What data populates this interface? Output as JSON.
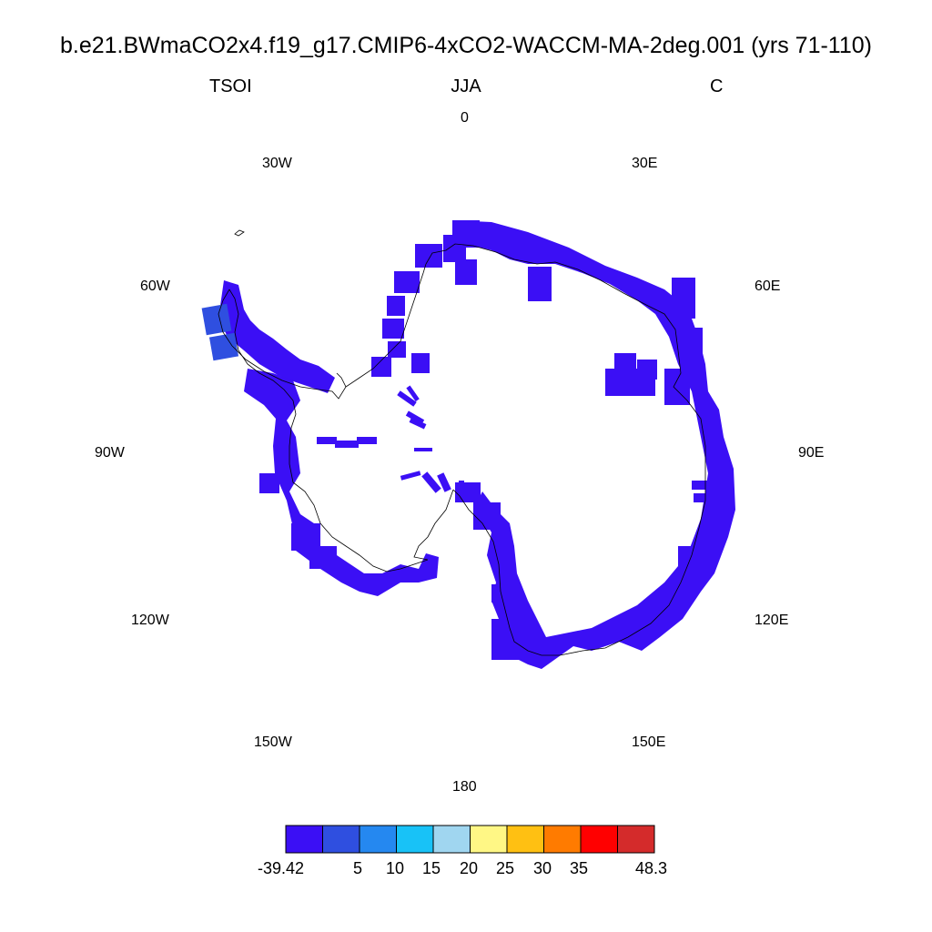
{
  "title": "b.e21.BWmaCO2x4.f19_g17.CMIP6-4xCO2-WACCM-MA-2deg.001 (yrs 71-110)",
  "left_label": "TSOI",
  "center_label": "JJA",
  "right_label": "C",
  "longitude_labels": {
    "lon_0": "0",
    "lon_30e": "30E",
    "lon_60e": "60E",
    "lon_90e": "90E",
    "lon_120e": "120E",
    "lon_150e": "150E",
    "lon_180": "180",
    "lon_150w": "150W",
    "lon_120w": "120W",
    "lon_90w": "90W",
    "lon_60w": "60W",
    "lon_30w": "30W"
  },
  "colorbar": {
    "colors": [
      "#3b0ff5",
      "#2f4fe0",
      "#2588f0",
      "#18c2f7",
      "#a0d6f0",
      "#fff785",
      "#ffc012",
      "#ff7b00",
      "#ff0000",
      "#d42b2b"
    ],
    "labels": [
      "-39.42",
      "5",
      "10",
      "15",
      "20",
      "25",
      "30",
      "35",
      "48.3"
    ]
  },
  "map": {
    "projection": "south polar stereographic",
    "field_color": "#3b0ff5",
    "warm_cell_color": "#2f4fe0"
  }
}
